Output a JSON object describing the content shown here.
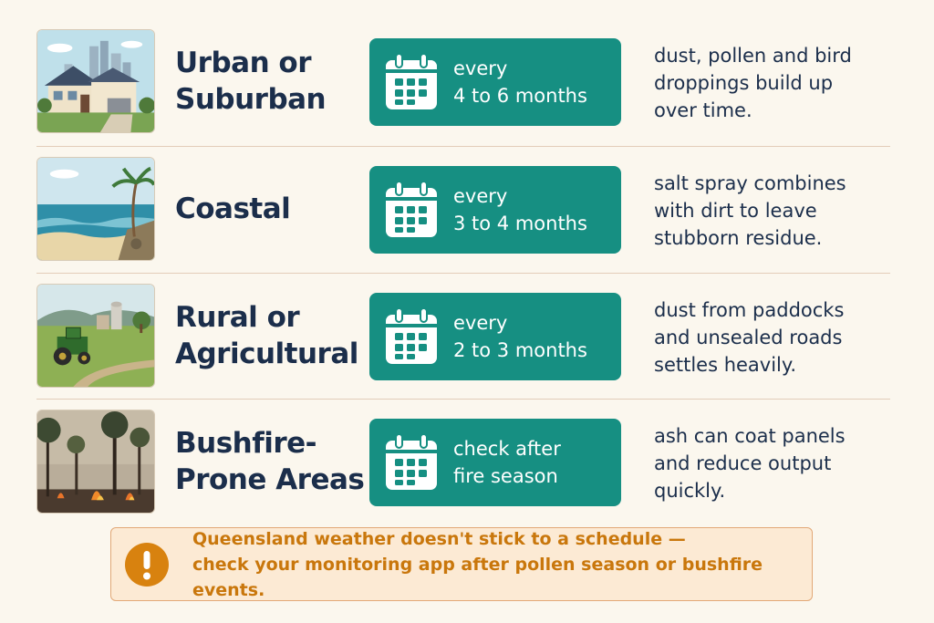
{
  "rows": [
    {
      "name_line1": "Urban or",
      "name_line2": "Suburban",
      "freq_line1": "every",
      "freq_line2": "4 to 6 months",
      "desc_line1": "dust, pollen and bird",
      "desc_line2": "droppings build up",
      "desc_line3": "over time."
    },
    {
      "name_line1": "Coastal",
      "name_line2": "",
      "freq_line1": "every",
      "freq_line2": "3 to 4 months",
      "desc_line1": "salt spray combines",
      "desc_line2": "with dirt to leave",
      "desc_line3": "stubborn residue."
    },
    {
      "name_line1": "Rural or",
      "name_line2": "Agricultural",
      "freq_line1": "every",
      "freq_line2": "2 to 3 months",
      "desc_line1": "dust from paddocks",
      "desc_line2": "and unsealed roads",
      "desc_line3": "settles heavily."
    },
    {
      "name_line1": "Bushfire-",
      "name_line2": "Prone Areas",
      "freq_line1": "check after",
      "freq_line2": "fire season",
      "desc_line1": "ash can coat panels",
      "desc_line2": "and reduce output",
      "desc_line3": "quickly."
    }
  ],
  "note": {
    "line1": "Queensland weather doesn't stick to a schedule —",
    "line2": "check your monitoring app after pollen season or bushfire events."
  },
  "icons": {
    "calendar": "calendar-icon",
    "alert": "exclamation-icon"
  },
  "colors": {
    "teal": "#168f82",
    "navy": "#1b2e4b",
    "orange": "#c9770c",
    "note_bg": "#fcead4"
  }
}
